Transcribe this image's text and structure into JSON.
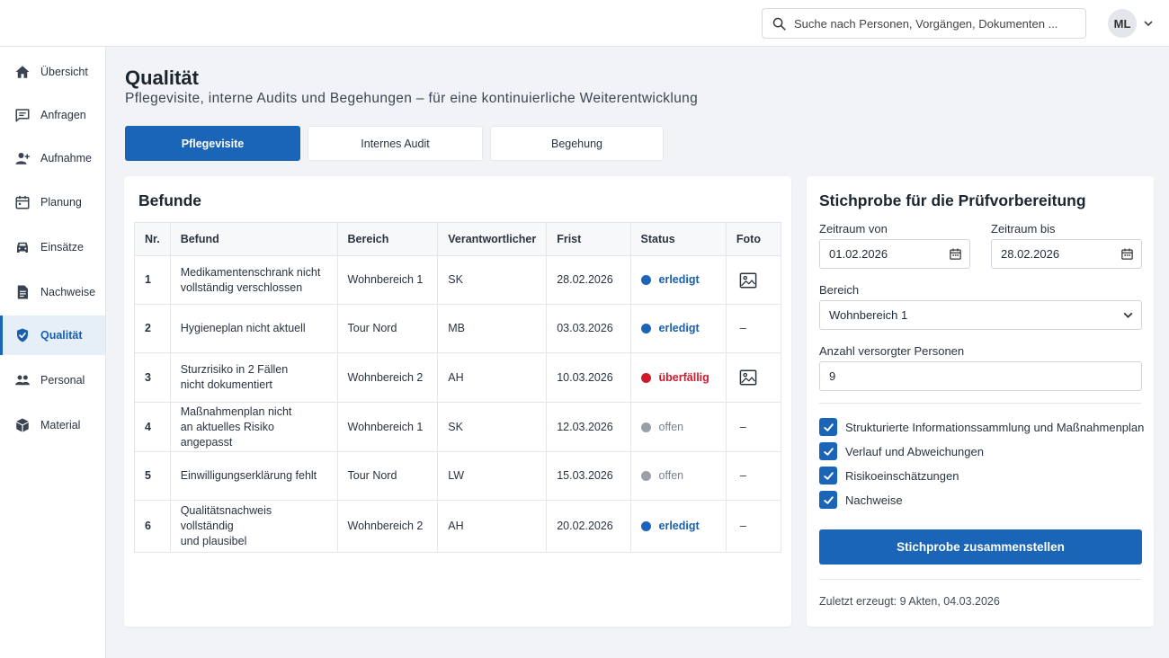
{
  "search": {
    "placeholder": "Suche nach Personen, Vorgängen, Dokumenten ..."
  },
  "user": {
    "initials": "ML"
  },
  "sidebar": {
    "items": [
      {
        "label": "Übersicht",
        "icon": "home-icon"
      },
      {
        "label": "Anfragen",
        "icon": "message-icon"
      },
      {
        "label": "Aufnahme",
        "icon": "person-add-icon"
      },
      {
        "label": "Planung",
        "icon": "calendar-icon"
      },
      {
        "label": "Einsätze",
        "icon": "car-icon"
      },
      {
        "label": "Nachweise",
        "icon": "document-icon"
      },
      {
        "label": "Qualität",
        "icon": "shield-check-icon",
        "active": true
      },
      {
        "label": "Personal",
        "icon": "people-icon"
      },
      {
        "label": "Material",
        "icon": "box-icon"
      }
    ]
  },
  "page": {
    "title": "Qualität",
    "subtitle": "Pflegevisite, interne Audits und Begehungen – für eine kontinuierliche Weiterentwicklung"
  },
  "tabs": [
    {
      "label": "Pflegevisite",
      "active": true
    },
    {
      "label": "Internes Audit",
      "active": false
    },
    {
      "label": "Begehung",
      "active": false
    }
  ],
  "findings": {
    "title": "Befunde",
    "columns": [
      "Nr.",
      "Befund",
      "Bereich",
      "Verantwortlicher",
      "Frist",
      "Status",
      "Foto"
    ],
    "rows": [
      {
        "nr": "1",
        "befund": [
          "Medikamentenschrank nicht",
          "vollständig verschlossen"
        ],
        "bereich": "Wohnbereich 1",
        "verantwortlich": "SK",
        "frist": "28.02.2026",
        "status": "erledigt",
        "status_type": "done",
        "foto": true
      },
      {
        "nr": "2",
        "befund": [
          "Hygieneplan nicht aktuell"
        ],
        "bereich": "Tour Nord",
        "verantwortlich": "MB",
        "frist": "03.03.2026",
        "status": "erledigt",
        "status_type": "done",
        "foto": false
      },
      {
        "nr": "3",
        "befund": [
          "Sturzrisiko in 2 Fällen",
          "nicht dokumentiert"
        ],
        "bereich": "Wohnbereich 2",
        "verantwortlich": "AH",
        "frist": "10.03.2026",
        "status": "überfällig",
        "status_type": "overdue",
        "foto": true
      },
      {
        "nr": "4",
        "befund": [
          "Maßnahmenplan nicht",
          "an aktuelles Risiko angepasst"
        ],
        "bereich": "Wohnbereich 1",
        "verantwortlich": "SK",
        "frist": "12.03.2026",
        "status": "offen",
        "status_type": "open",
        "foto": false
      },
      {
        "nr": "5",
        "befund": [
          "Einwilligungserklärung fehlt"
        ],
        "bereich": "Tour Nord",
        "verantwortlich": "LW",
        "frist": "15.03.2026",
        "status": "offen",
        "status_type": "open",
        "foto": false
      },
      {
        "nr": "6",
        "befund": [
          "Qualitätsnachweis vollständig",
          "und plausibel"
        ],
        "bereich": "Wohnbereich 2",
        "verantwortlich": "AH",
        "frist": "20.02.2026",
        "status": "erledigt",
        "status_type": "done",
        "foto": false
      }
    ],
    "no_photo": "–"
  },
  "status_colors": {
    "done": "#1a65b8",
    "overdue": "#d0192b",
    "open": "#9aa0a6"
  },
  "sample": {
    "title": "Stichprobe für die Prüfvorbereitung",
    "from_label": "Zeitraum von",
    "from_value": "01.02.2026",
    "to_label": "Zeitraum bis",
    "to_value": "28.02.2026",
    "area_label": "Bereich",
    "area_value": "Wohnbereich 1",
    "count_label": "Anzahl versorgter Personen",
    "count_value": "9",
    "checkboxes": [
      {
        "label": "Strukturierte Informationssammlung und Maßnahmenplan",
        "checked": true
      },
      {
        "label": "Verlauf und Abweichungen",
        "checked": true
      },
      {
        "label": "Risikoeinschätzungen",
        "checked": true
      },
      {
        "label": "Nachweise",
        "checked": true
      }
    ],
    "button": "Stichprobe zusammenstellen",
    "last_generated": "Zuletzt erzeugt: 9 Akten, 04.03.2026"
  },
  "accent_color": "#1a65b8"
}
